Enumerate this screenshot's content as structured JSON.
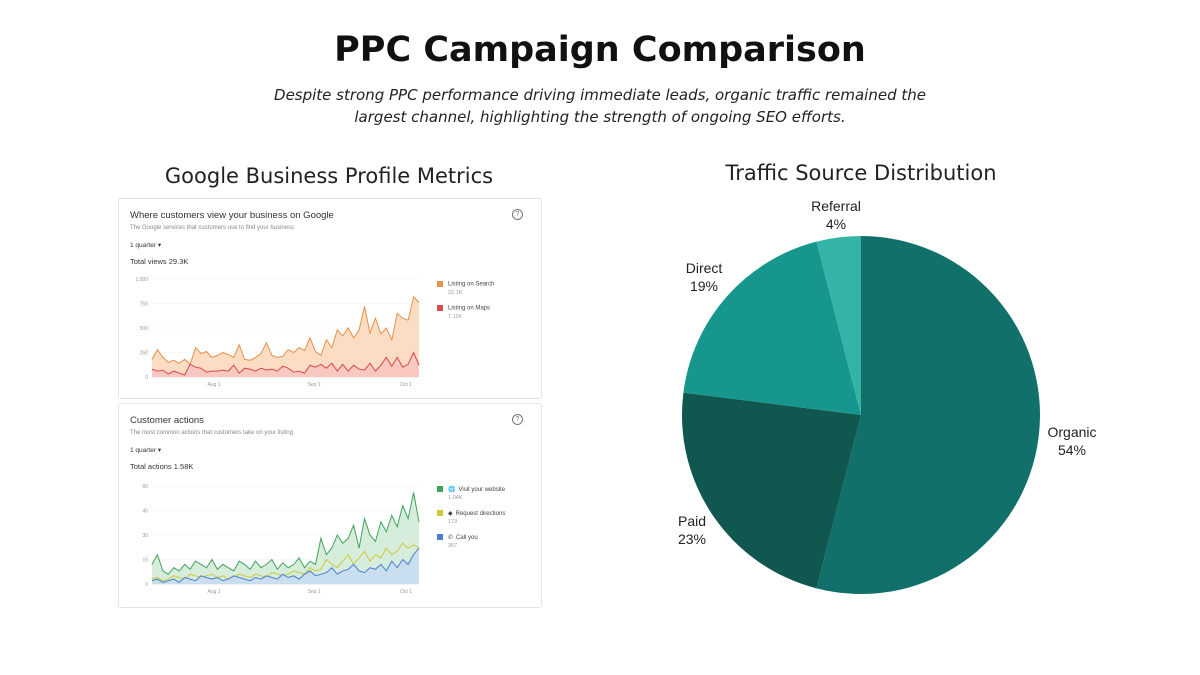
{
  "title": "PPC Campaign Comparison",
  "subtitle": "Despite strong PPC performance driving immediate leads, organic traffic remained the largest channel, highlighting the strength of ongoing SEO efforts.",
  "left_title": "Google Business Profile Metrics",
  "right_title": "Traffic Source Distribution",
  "views_card": {
    "title": "Where customers view your business on Google",
    "subtitle": "The Google services that customers use to find your business",
    "period": "1 quarter ▾",
    "total": "Total views 29.3K",
    "help": "?"
  },
  "actions_card": {
    "title": "Customer actions",
    "subtitle": "The most common actions that customers take on your listing",
    "period": "1 quarter ▾",
    "total": "Total actions 1.58K",
    "help": "?"
  },
  "chart_data": [
    {
      "type": "area",
      "yticks": [
        "0",
        "250",
        "500",
        "750",
        "1,000"
      ],
      "ylim": [
        0,
        1000
      ],
      "xticks": [
        "Aug 1",
        "Sep 1",
        "Oct 1"
      ],
      "legend": "right",
      "series": [
        {
          "name": "Listing on Search",
          "total": "22.1K",
          "color": "#e8904a",
          "fill": "#fbd3b4",
          "values": [
            180,
            280,
            200,
            150,
            170,
            140,
            180,
            130,
            300,
            240,
            260,
            200,
            220,
            250,
            230,
            200,
            330,
            180,
            170,
            200,
            240,
            350,
            220,
            200,
            210,
            280,
            250,
            300,
            270,
            400,
            260,
            220,
            380,
            300,
            480,
            420,
            500,
            400,
            480,
            720,
            450,
            600,
            440,
            500,
            380,
            650,
            600,
            580,
            820,
            760
          ]
        },
        {
          "name": "Listing on Maps",
          "total": "7.11K",
          "color": "#d9484a",
          "fill": "#f6c3c0",
          "values": [
            80,
            60,
            70,
            30,
            60,
            40,
            20,
            130,
            100,
            90,
            50,
            60,
            60,
            70,
            60,
            120,
            40,
            90,
            80,
            60,
            90,
            70,
            80,
            60,
            110,
            90,
            50,
            60,
            40,
            120,
            100,
            130,
            90,
            140,
            60,
            130,
            60,
            120,
            80,
            70,
            140,
            60,
            120,
            200,
            110,
            200,
            100,
            130,
            250,
            120
          ]
        }
      ]
    },
    {
      "type": "area",
      "yticks": [
        "0",
        "15",
        "30",
        "45",
        "60"
      ],
      "ylim": [
        0,
        60
      ],
      "xticks": [
        "Aug 1",
        "Sep 1",
        "Oct 1"
      ],
      "legend": "right",
      "series": [
        {
          "name": "Visit your website",
          "total": "1.04K",
          "icon": "globe-icon",
          "color": "#3fa35b",
          "fill": "#cde9d2",
          "values": [
            12,
            18,
            8,
            6,
            10,
            8,
            12,
            9,
            14,
            12,
            10,
            15,
            9,
            12,
            10,
            8,
            14,
            12,
            9,
            14,
            10,
            12,
            15,
            9,
            13,
            10,
            12,
            16,
            10,
            14,
            12,
            28,
            18,
            22,
            30,
            25,
            28,
            36,
            22,
            40,
            30,
            26,
            38,
            32,
            42,
            35,
            48,
            40,
            56,
            38
          ]
        },
        {
          "name": "Request directions",
          "total": "173",
          "icon": "directions-icon",
          "color": "#c9c93a",
          "fill": "none",
          "values": [
            3,
            4,
            2,
            3,
            5,
            4,
            3,
            6,
            5,
            4,
            5,
            6,
            4,
            5,
            3,
            4,
            6,
            5,
            4,
            6,
            5,
            4,
            7,
            6,
            5,
            6,
            8,
            7,
            6,
            10,
            8,
            9,
            15,
            12,
            10,
            14,
            18,
            12,
            16,
            20,
            14,
            18,
            16,
            22,
            18,
            20,
            25,
            22,
            24,
            22
          ]
        },
        {
          "name": "Call you",
          "total": "367",
          "icon": "phone-icon",
          "color": "#4a7fd0",
          "fill": "#c6d9f3",
          "values": [
            2,
            3,
            1,
            2,
            3,
            1,
            4,
            3,
            2,
            5,
            4,
            3,
            4,
            2,
            3,
            5,
            4,
            3,
            2,
            4,
            3,
            5,
            4,
            3,
            6,
            4,
            5,
            3,
            6,
            8,
            5,
            6,
            7,
            10,
            6,
            8,
            9,
            12,
            8,
            7,
            10,
            9,
            12,
            8,
            14,
            10,
            15,
            12,
            18,
            22
          ]
        }
      ]
    },
    {
      "type": "pie",
      "title": "Traffic Source Distribution",
      "slices": [
        {
          "label": "Organic",
          "value": 54,
          "text": "54%",
          "color": "#12706a"
        },
        {
          "label": "Paid",
          "value": 23,
          "text": "23%",
          "color": "#10574f"
        },
        {
          "label": "Direct",
          "value": 19,
          "text": "19%",
          "color": "#16968c"
        },
        {
          "label": "Referral",
          "value": 4,
          "text": "4%",
          "color": "#35b3a7"
        }
      ]
    }
  ]
}
